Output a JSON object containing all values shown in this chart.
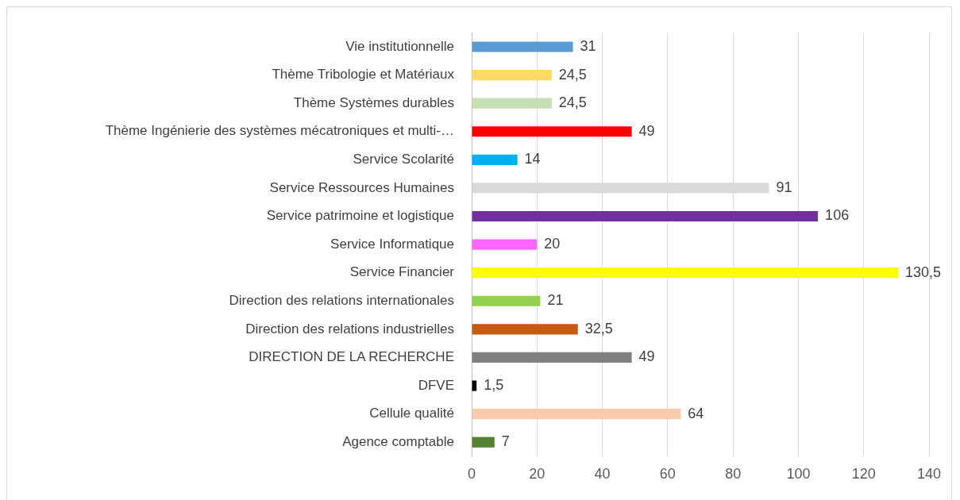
{
  "chart_data": {
    "type": "bar",
    "orientation": "horizontal",
    "categories": [
      "Vie institutionnelle",
      "Thème Tribologie et Matériaux",
      "Thème Systèmes durables",
      "Thème Ingénierie des systèmes mécatroniques et multi-…",
      "Service Scolarité",
      "Service Ressources Humaines",
      "Service patrimoine et logistique",
      "Service Informatique",
      "Service Financier",
      "Direction des relations internationales",
      "Direction des relations industrielles",
      "DIRECTION DE LA RECHERCHE",
      "DFVE",
      "Cellule qualité",
      "Agence comptable"
    ],
    "values": [
      31,
      24.5,
      24.5,
      49,
      14,
      91,
      106,
      20,
      130.5,
      21,
      32.5,
      49,
      1.5,
      64,
      7
    ],
    "colors": [
      "#5b9bd5",
      "#ffd966",
      "#c5e0b4",
      "#ff0000",
      "#00b0f0",
      "#d9d9d9",
      "#7030a0",
      "#ff66ff",
      "#ffff00",
      "#92d050",
      "#c55a11",
      "#808080",
      "#000000",
      "#f8cbad",
      "#548235"
    ],
    "value_labels": [
      "31",
      "24,5",
      "24,5",
      "49",
      "14",
      "91",
      "106",
      "20",
      "130,5",
      "21",
      "32,5",
      "49",
      "1,5",
      "64",
      "7"
    ],
    "xlim": [
      0,
      140
    ],
    "xticks": [
      0,
      20,
      40,
      60,
      80,
      100,
      120,
      140
    ],
    "grid": "x"
  }
}
